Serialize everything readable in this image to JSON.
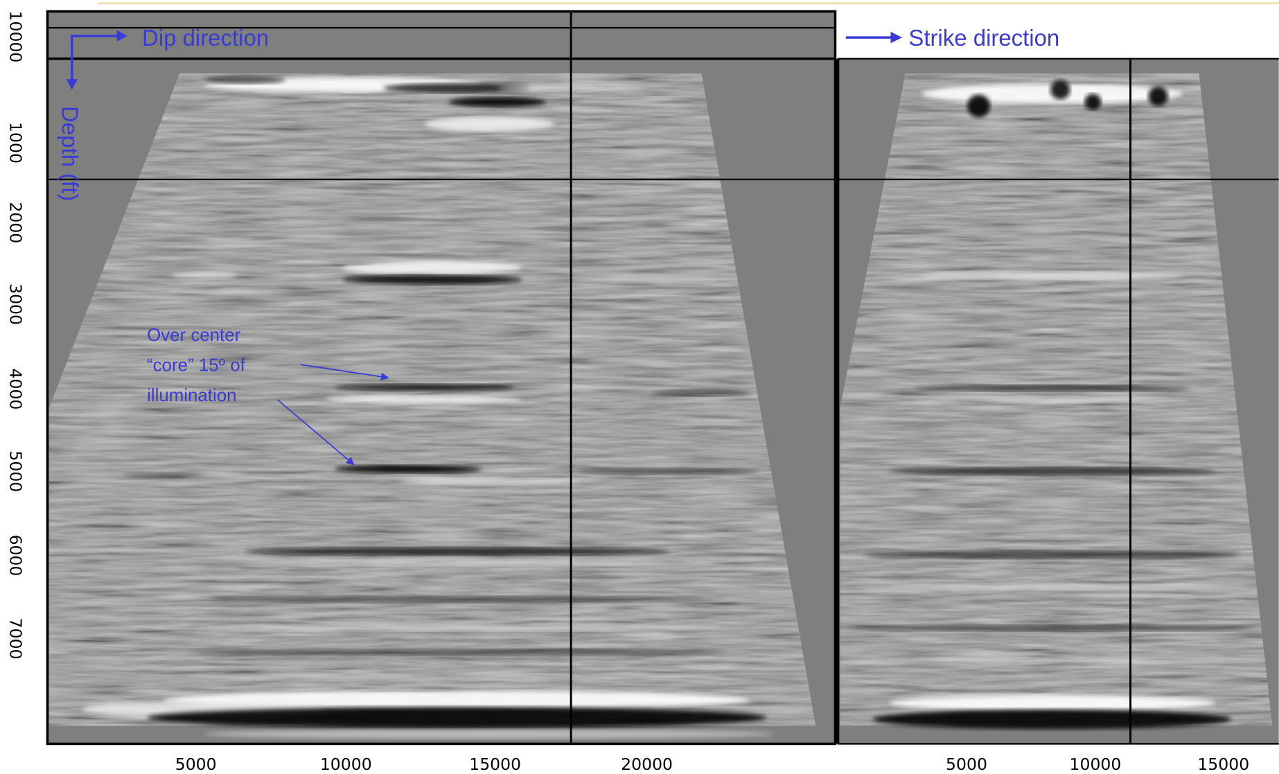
{
  "left_panel": {
    "annotations": {
      "dip": "Dip direction",
      "depth": "Depth (ft)",
      "note": [
        "Over center",
        "“core” 15º of",
        "illumination"
      ]
    },
    "yticks": [
      "10000",
      "1000",
      "2000",
      "3000",
      "4000",
      "5000",
      "6000",
      "7000"
    ],
    "xticks": [
      "5000",
      "10000",
      "15000",
      "20000"
    ]
  },
  "right_panel": {
    "annotation": "Strike direction",
    "xticks": [
      "5000",
      "10000",
      "15000"
    ]
  }
}
